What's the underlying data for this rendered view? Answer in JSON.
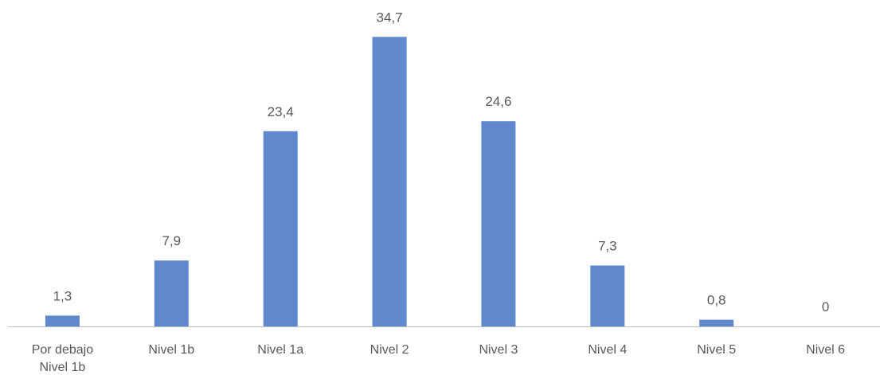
{
  "chart_data": {
    "type": "bar",
    "categories": [
      [
        "Por debajo",
        "Nivel 1b"
      ],
      [
        "Nivel 1b"
      ],
      [
        "Nivel 1a"
      ],
      [
        "Nivel 2"
      ],
      [
        "Nivel 3"
      ],
      [
        "Nivel 4"
      ],
      [
        "Nivel 5"
      ],
      [
        "Nivel 6"
      ]
    ],
    "values": [
      1.3,
      7.9,
      23.4,
      34.7,
      24.6,
      7.3,
      0.8,
      0
    ],
    "data_labels": [
      "1,3",
      "7,9",
      "23,4",
      "34,7",
      "24,6",
      "7,3",
      "0,8",
      "0"
    ],
    "ylim": [
      0,
      36
    ],
    "grid": false,
    "legend": "none",
    "bar_color": "#6088cc",
    "axis_color": "#bfbfbf",
    "text_color": "#595959"
  }
}
